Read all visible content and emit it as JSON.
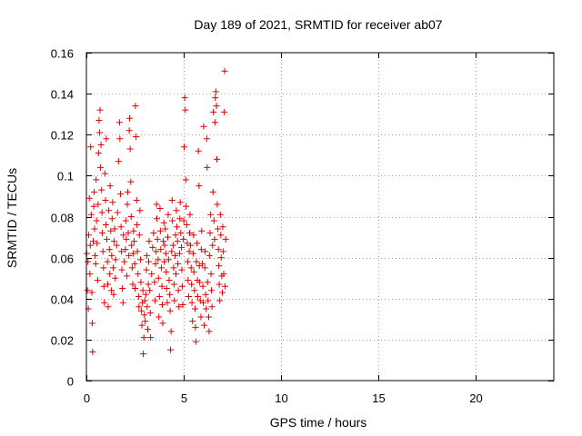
{
  "chart_data": {
    "type": "scatter",
    "title": "Day 189 of 2021, SRMTID for receiver ab07",
    "xlabel": "GPS time / hours",
    "ylabel": "SRMTID / TECUs",
    "xlim": [
      0,
      24
    ],
    "ylim": [
      0,
      0.16
    ],
    "xticks": [
      0,
      5,
      10,
      15,
      20
    ],
    "yticks": [
      0,
      0.02,
      0.04,
      0.06,
      0.08,
      0.1,
      0.12,
      0.14,
      0.16
    ],
    "xtick_labels": [
      "0",
      "5",
      "10",
      "15",
      "20"
    ],
    "ytick_labels": [
      "0",
      "0.02",
      "0.04",
      "0.06",
      "0.08",
      "0.1",
      "0.12",
      "0.14",
      "0.16"
    ],
    "grid": true,
    "marker": "+",
    "color": "#e00000",
    "series": [
      {
        "name": "SRMTID",
        "points": [
          [
            0.02,
            0.062
          ],
          [
            0.05,
            0.044
          ],
          [
            0.08,
            0.058
          ],
          [
            0.1,
            0.035
          ],
          [
            0.12,
            0.071
          ],
          [
            0.15,
            0.089
          ],
          [
            0.18,
            0.052
          ],
          [
            0.2,
            0.066
          ],
          [
            0.22,
            0.114
          ],
          [
            0.25,
            0.081
          ],
          [
            0.28,
            0.043
          ],
          [
            0.3,
            0.028
          ],
          [
            0.32,
            0.014
          ],
          [
            0.35,
            0.068
          ],
          [
            0.38,
            0.085
          ],
          [
            0.4,
            0.092
          ],
          [
            0.42,
            0.074
          ],
          [
            0.45,
            0.061
          ],
          [
            0.48,
            0.057
          ],
          [
            0.5,
            0.098
          ],
          [
            0.52,
            0.078
          ],
          [
            0.55,
            0.067
          ],
          [
            0.58,
            0.049
          ],
          [
            0.6,
            0.086
          ],
          [
            0.62,
            0.111
          ],
          [
            0.65,
            0.127
          ],
          [
            0.68,
            0.121
          ],
          [
            0.7,
            0.132
          ],
          [
            0.72,
            0.104
          ],
          [
            0.75,
            0.115
          ],
          [
            0.78,
            0.093
          ],
          [
            0.8,
            0.082
          ],
          [
            0.82,
            0.072
          ],
          [
            0.85,
            0.063
          ],
          [
            0.88,
            0.055
          ],
          [
            0.9,
            0.046
          ],
          [
            0.92,
            0.038
          ],
          [
            0.95,
            0.101
          ],
          [
            0.98,
            0.088
          ],
          [
            1.0,
            0.076
          ],
          [
            1.02,
            0.118
          ],
          [
            1.05,
            0.069
          ],
          [
            1.08,
            0.058
          ],
          [
            1.1,
            0.047
          ],
          [
            1.12,
            0.036
          ],
          [
            1.15,
            0.083
          ],
          [
            1.18,
            0.064
          ],
          [
            1.2,
            0.052
          ],
          [
            1.22,
            0.095
          ],
          [
            1.25,
            0.073
          ],
          [
            1.28,
            0.044
          ],
          [
            1.3,
            0.061
          ],
          [
            1.32,
            0.079
          ],
          [
            1.35,
            0.087
          ],
          [
            1.38,
            0.055
          ],
          [
            1.4,
            0.042
          ],
          [
            1.42,
            0.068
          ],
          [
            1.45,
            0.074
          ],
          [
            1.48,
            0.05
          ],
          [
            1.5,
            0.059
          ],
          [
            1.55,
            0.066
          ],
          [
            1.6,
            0.082
          ],
          [
            1.65,
            0.107
          ],
          [
            1.7,
            0.126
          ],
          [
            1.72,
            0.118
          ],
          [
            1.75,
            0.091
          ],
          [
            1.78,
            0.075
          ],
          [
            1.8,
            0.063
          ],
          [
            1.82,
            0.054
          ],
          [
            1.85,
            0.045
          ],
          [
            1.88,
            0.038
          ],
          [
            1.9,
            0.071
          ],
          [
            1.95,
            0.058
          ],
          [
            2.0,
            0.064
          ],
          [
            2.02,
            0.078
          ],
          [
            2.05,
            0.069
          ],
          [
            2.08,
            0.051
          ],
          [
            2.1,
            0.086
          ],
          [
            2.12,
            0.092
          ],
          [
            2.15,
            0.072
          ],
          [
            2.18,
            0.061
          ],
          [
            2.2,
            0.122
          ],
          [
            2.22,
            0.128
          ],
          [
            2.25,
            0.113
          ],
          [
            2.28,
            0.097
          ],
          [
            2.3,
            0.08
          ],
          [
            2.32,
            0.066
          ],
          [
            2.35,
            0.055
          ],
          [
            2.38,
            0.047
          ],
          [
            2.4,
            0.062
          ],
          [
            2.42,
            0.073
          ],
          [
            2.45,
            0.068
          ],
          [
            2.48,
            0.057
          ],
          [
            2.5,
            0.045
          ],
          [
            2.52,
            0.134
          ],
          [
            2.55,
            0.119
          ],
          [
            2.58,
            0.088
          ],
          [
            2.6,
            0.076
          ],
          [
            2.62,
            0.063
          ],
          [
            2.65,
            0.052
          ],
          [
            2.68,
            0.041
          ],
          [
            2.7,
            0.036
          ],
          [
            2.72,
            0.071
          ],
          [
            2.75,
            0.083
          ],
          [
            2.78,
            0.059
          ],
          [
            2.8,
            0.048
          ],
          [
            2.82,
            0.034
          ],
          [
            2.85,
            0.027
          ],
          [
            2.88,
            0.038
          ],
          [
            2.9,
            0.044
          ],
          [
            2.92,
            0.013
          ],
          [
            2.95,
            0.021
          ],
          [
            2.98,
            0.032
          ],
          [
            3.0,
            0.039
          ],
          [
            3.02,
            0.029
          ],
          [
            3.05,
            0.042
          ],
          [
            3.08,
            0.054
          ],
          [
            3.1,
            0.061
          ],
          [
            3.12,
            0.036
          ],
          [
            3.15,
            0.025
          ],
          [
            3.18,
            0.047
          ],
          [
            3.2,
            0.058
          ],
          [
            3.22,
            0.068
          ],
          [
            3.25,
            0.044
          ],
          [
            3.28,
            0.033
          ],
          [
            3.3,
            0.021
          ],
          [
            3.35,
            0.052
          ],
          [
            3.4,
            0.065
          ],
          [
            3.45,
            0.072
          ],
          [
            3.5,
            0.048
          ],
          [
            3.52,
            0.039
          ],
          [
            3.55,
            0.057
          ],
          [
            3.58,
            0.063
          ],
          [
            3.6,
            0.086
          ],
          [
            3.62,
            0.079
          ],
          [
            3.65,
            0.069
          ],
          [
            3.68,
            0.059
          ],
          [
            3.7,
            0.05
          ],
          [
            3.72,
            0.031
          ],
          [
            3.75,
            0.041
          ],
          [
            3.78,
            0.084
          ],
          [
            3.8,
            0.073
          ],
          [
            3.82,
            0.064
          ],
          [
            3.85,
            0.055
          ],
          [
            3.88,
            0.046
          ],
          [
            3.9,
            0.037
          ],
          [
            3.92,
            0.028
          ],
          [
            3.95,
            0.068
          ],
          [
            3.98,
            0.077
          ],
          [
            4.0,
            0.058
          ],
          [
            4.02,
            0.066
          ],
          [
            4.05,
            0.074
          ],
          [
            4.08,
            0.062
          ],
          [
            4.1,
            0.053
          ],
          [
            4.12,
            0.045
          ],
          [
            4.15,
            0.038
          ],
          [
            4.18,
            0.07
          ],
          [
            4.2,
            0.081
          ],
          [
            4.22,
            0.059
          ],
          [
            4.25,
            0.049
          ],
          [
            4.28,
            0.042
          ],
          [
            4.3,
            0.034
          ],
          [
            4.32,
            0.015
          ],
          [
            4.35,
            0.024
          ],
          [
            4.38,
            0.063
          ],
          [
            4.4,
            0.088
          ],
          [
            4.42,
            0.078
          ],
          [
            4.45,
            0.066
          ],
          [
            4.48,
            0.055
          ],
          [
            4.5,
            0.047
          ],
          [
            4.52,
            0.039
          ],
          [
            4.55,
            0.061
          ],
          [
            4.58,
            0.071
          ],
          [
            4.6,
            0.052
          ],
          [
            4.62,
            0.083
          ],
          [
            4.65,
            0.075
          ],
          [
            4.68,
            0.068
          ],
          [
            4.7,
            0.057
          ],
          [
            4.72,
            0.044
          ],
          [
            4.75,
            0.036
          ],
          [
            4.78,
            0.062
          ],
          [
            4.8,
            0.079
          ],
          [
            4.82,
            0.087
          ],
          [
            4.85,
            0.072
          ],
          [
            4.88,
            0.065
          ],
          [
            4.9,
            0.054
          ],
          [
            4.92,
            0.046
          ],
          [
            4.95,
            0.037
          ],
          [
            4.98,
            0.069
          ],
          [
            5.0,
            0.078
          ],
          [
            5.02,
            0.114
          ],
          [
            5.05,
            0.138
          ],
          [
            5.08,
            0.132
          ],
          [
            5.1,
            0.098
          ],
          [
            5.12,
            0.085
          ],
          [
            5.15,
            0.076
          ],
          [
            5.18,
            0.067
          ],
          [
            5.2,
            0.058
          ],
          [
            5.22,
            0.049
          ],
          [
            5.25,
            0.041
          ],
          [
            5.28,
            0.063
          ],
          [
            5.3,
            0.072
          ],
          [
            5.32,
            0.081
          ],
          [
            5.35,
            0.066
          ],
          [
            5.38,
            0.055
          ],
          [
            5.4,
            0.047
          ],
          [
            5.42,
            0.038
          ],
          [
            5.45,
            0.029
          ],
          [
            5.48,
            0.062
          ],
          [
            5.5,
            0.071
          ],
          [
            5.52,
            0.053
          ],
          [
            5.55,
            0.044
          ],
          [
            5.58,
            0.035
          ],
          [
            5.6,
            0.026
          ],
          [
            5.62,
            0.019
          ],
          [
            5.65,
            0.058
          ],
          [
            5.68,
            0.067
          ],
          [
            5.7,
            0.049
          ],
          [
            5.72,
            0.041
          ],
          [
            5.75,
            0.112
          ],
          [
            5.78,
            0.095
          ],
          [
            5.8,
            0.056
          ],
          [
            5.82,
            0.048
          ],
          [
            5.85,
            0.039
          ],
          [
            5.88,
            0.031
          ],
          [
            5.9,
            0.064
          ],
          [
            5.92,
            0.073
          ],
          [
            5.95,
            0.057
          ],
          [
            5.98,
            0.046
          ],
          [
            6.0,
            0.038
          ],
          [
            6.02,
            0.124
          ],
          [
            6.05,
            0.027
          ],
          [
            6.08,
            0.055
          ],
          [
            6.1,
            0.063
          ],
          [
            6.12,
            0.042
          ],
          [
            6.15,
            0.035
          ],
          [
            6.18,
            0.118
          ],
          [
            6.2,
            0.104
          ],
          [
            6.22,
            0.048
          ],
          [
            6.25,
            0.039
          ],
          [
            6.28,
            0.031
          ],
          [
            6.3,
            0.024
          ],
          [
            6.32,
            0.061
          ],
          [
            6.35,
            0.072
          ],
          [
            6.38,
            0.081
          ],
          [
            6.4,
            0.052
          ],
          [
            6.42,
            0.044
          ],
          [
            6.45,
            0.036
          ],
          [
            6.48,
            0.066
          ],
          [
            6.5,
            0.092
          ],
          [
            6.52,
            0.131
          ],
          [
            6.55,
            0.078
          ],
          [
            6.58,
            0.069
          ],
          [
            6.6,
            0.126
          ],
          [
            6.62,
            0.138
          ],
          [
            6.65,
            0.141
          ],
          [
            6.68,
            0.134
          ],
          [
            6.7,
            0.108
          ],
          [
            6.72,
            0.086
          ],
          [
            6.75,
            0.074
          ],
          [
            6.78,
            0.064
          ],
          [
            6.8,
            0.056
          ],
          [
            6.82,
            0.047
          ],
          [
            6.85,
            0.039
          ],
          [
            6.88,
            0.081
          ],
          [
            6.9,
            0.071
          ],
          [
            6.92,
            0.06
          ],
          [
            6.95,
            0.051
          ],
          [
            6.98,
            0.043
          ],
          [
            7.0,
            0.075
          ],
          [
            7.02,
            0.063
          ],
          [
            7.05,
            0.052
          ],
          [
            7.08,
            0.131
          ],
          [
            7.1,
            0.151
          ],
          [
            7.12,
            0.046
          ],
          [
            7.15,
            0.069
          ]
        ]
      }
    ]
  }
}
